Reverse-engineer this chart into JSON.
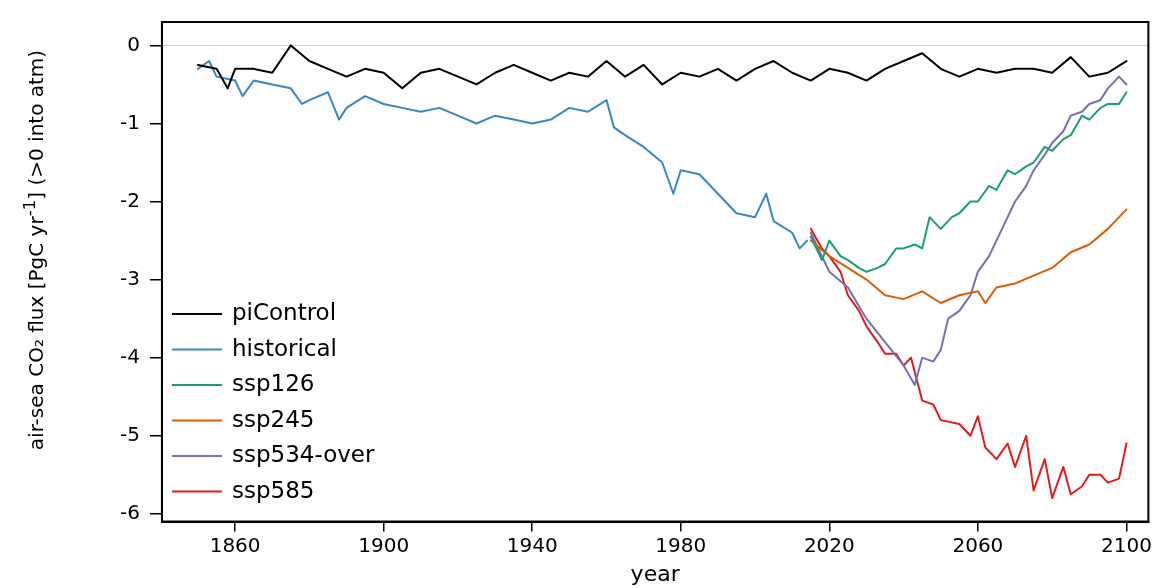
{
  "chart_data": {
    "type": "line",
    "xlabel": "year",
    "ylabel": "air-sea CO₂ flux [PgC yr$^{-1}$] (>0 into atm)",
    "xlim": [
      1840.3,
      2105.9
    ],
    "ylim": [
      -6.1,
      0.3
    ],
    "xticks": [
      1860,
      1900,
      1940,
      1980,
      2020,
      2060,
      2100
    ],
    "yticks": [
      0,
      -1,
      -2,
      -3,
      -4,
      -5,
      -6
    ],
    "grid": false,
    "legend": "bottom left",
    "marker": "none",
    "line_style": "solid",
    "ref_lines": [
      {
        "axis": "y",
        "value": 0,
        "color": "#cccccc"
      }
    ],
    "series": [
      {
        "name": "piControl",
        "color": "#000000",
        "x": [
          1850,
          1855,
          1858,
          1860,
          1865,
          1870,
          1875,
          1880,
          1885,
          1890,
          1895,
          1900,
          1905,
          1910,
          1915,
          1920,
          1925,
          1930,
          1935,
          1940,
          1945,
          1950,
          1955,
          1960,
          1965,
          1970,
          1975,
          1980,
          1985,
          1990,
          1995,
          2000,
          2005,
          2010,
          2015,
          2020,
          2025,
          2030,
          2035,
          2040,
          2045,
          2050,
          2055,
          2060,
          2065,
          2070,
          2075,
          2080,
          2085,
          2090,
          2095,
          2100
        ],
        "values": [
          -0.25,
          -0.3,
          -0.55,
          -0.3,
          -0.3,
          -0.35,
          0.0,
          -0.2,
          -0.3,
          -0.4,
          -0.3,
          -0.35,
          -0.55,
          -0.35,
          -0.3,
          -0.4,
          -0.5,
          -0.35,
          -0.25,
          -0.35,
          -0.45,
          -0.35,
          -0.4,
          -0.2,
          -0.4,
          -0.25,
          -0.5,
          -0.35,
          -0.4,
          -0.3,
          -0.45,
          -0.3,
          -0.2,
          -0.35,
          -0.45,
          -0.3,
          -0.35,
          -0.45,
          -0.3,
          -0.2,
          -0.1,
          -0.3,
          -0.4,
          -0.3,
          -0.35,
          -0.3,
          -0.3,
          -0.35,
          -0.15,
          -0.4,
          -0.35,
          -0.2
        ]
      },
      {
        "name": "historical",
        "color": "#3a87c2",
        "x": [
          1850,
          1853,
          1855,
          1860,
          1862,
          1865,
          1870,
          1875,
          1878,
          1880,
          1885,
          1888,
          1890,
          1895,
          1900,
          1905,
          1910,
          1915,
          1920,
          1925,
          1930,
          1935,
          1940,
          1945,
          1950,
          1955,
          1960,
          1962,
          1965,
          1970,
          1975,
          1978,
          1980,
          1985,
          1990,
          1995,
          2000,
          2003,
          2005,
          2010,
          2012,
          2014
        ],
        "values": [
          -0.3,
          -0.2,
          -0.4,
          -0.45,
          -0.65,
          -0.45,
          -0.5,
          -0.55,
          -0.75,
          -0.7,
          -0.6,
          -0.95,
          -0.8,
          -0.65,
          -0.75,
          -0.8,
          -0.85,
          -0.8,
          -0.9,
          -1.0,
          -0.9,
          -0.95,
          -1.0,
          -0.95,
          -0.8,
          -0.85,
          -0.7,
          -1.05,
          -1.15,
          -1.3,
          -1.5,
          -1.9,
          -1.6,
          -1.65,
          -1.9,
          -2.15,
          -2.2,
          -1.9,
          -2.25,
          -2.4,
          -2.6,
          -2.5
        ]
      },
      {
        "name": "ssp126",
        "color": "#1b9e77",
        "x": [
          2015,
          2018,
          2020,
          2023,
          2025,
          2028,
          2030,
          2033,
          2035,
          2038,
          2040,
          2043,
          2045,
          2047,
          2050,
          2053,
          2055,
          2058,
          2060,
          2063,
          2065,
          2068,
          2070,
          2073,
          2075,
          2078,
          2080,
          2083,
          2085,
          2088,
          2090,
          2093,
          2095,
          2098,
          2100
        ],
        "values": [
          -2.45,
          -2.75,
          -2.5,
          -2.7,
          -2.75,
          -2.85,
          -2.9,
          -2.85,
          -2.8,
          -2.6,
          -2.6,
          -2.55,
          -2.6,
          -2.2,
          -2.35,
          -2.2,
          -2.15,
          -2.0,
          -2.0,
          -1.8,
          -1.85,
          -1.6,
          -1.65,
          -1.55,
          -1.5,
          -1.3,
          -1.35,
          -1.2,
          -1.15,
          -0.9,
          -0.95,
          -0.8,
          -0.75,
          -0.75,
          -0.6
        ]
      },
      {
        "name": "ssp245",
        "color": "#d95f02",
        "x": [
          2015,
          2020,
          2025,
          2030,
          2035,
          2040,
          2045,
          2050,
          2055,
          2060,
          2062,
          2065,
          2070,
          2075,
          2080,
          2085,
          2090,
          2095,
          2100
        ],
        "values": [
          -2.5,
          -2.7,
          -2.85,
          -3.0,
          -3.2,
          -3.25,
          -3.15,
          -3.3,
          -3.2,
          -3.15,
          -3.3,
          -3.1,
          -3.05,
          -2.95,
          -2.85,
          -2.65,
          -2.55,
          -2.35,
          -2.1
        ]
      },
      {
        "name": "ssp534-over",
        "color": "#7570b3",
        "x": [
          2015,
          2020,
          2025,
          2030,
          2035,
          2040,
          2043,
          2045,
          2048,
          2050,
          2052,
          2055,
          2058,
          2060,
          2063,
          2065,
          2068,
          2070,
          2073,
          2075,
          2078,
          2080,
          2083,
          2085,
          2088,
          2090,
          2093,
          2095,
          2098,
          2100
        ],
        "values": [
          -2.4,
          -2.9,
          -3.1,
          -3.5,
          -3.8,
          -4.1,
          -4.35,
          -4.0,
          -4.05,
          -3.9,
          -3.5,
          -3.4,
          -3.2,
          -2.9,
          -2.7,
          -2.5,
          -2.2,
          -2.0,
          -1.8,
          -1.6,
          -1.4,
          -1.25,
          -1.1,
          -0.9,
          -0.85,
          -0.75,
          -0.7,
          -0.55,
          -0.4,
          -0.5
        ]
      },
      {
        "name": "ssp585",
        "color": "#e41a1c",
        "x": [
          2015,
          2018,
          2020,
          2023,
          2025,
          2028,
          2030,
          2033,
          2035,
          2038,
          2040,
          2042,
          2045,
          2048,
          2050,
          2055,
          2058,
          2060,
          2062,
          2065,
          2068,
          2070,
          2073,
          2075,
          2078,
          2080,
          2083,
          2085,
          2088,
          2090,
          2093,
          2095,
          2098,
          2100
        ],
        "values": [
          -2.35,
          -2.6,
          -2.7,
          -2.9,
          -3.2,
          -3.4,
          -3.6,
          -3.8,
          -3.95,
          -3.95,
          -4.1,
          -4.0,
          -4.55,
          -4.6,
          -4.8,
          -4.85,
          -5.0,
          -4.75,
          -5.15,
          -5.3,
          -5.1,
          -5.4,
          -5.0,
          -5.7,
          -5.3,
          -5.8,
          -5.4,
          -5.75,
          -5.65,
          -5.5,
          -5.5,
          -5.6,
          -5.55,
          -5.1
        ]
      }
    ]
  }
}
